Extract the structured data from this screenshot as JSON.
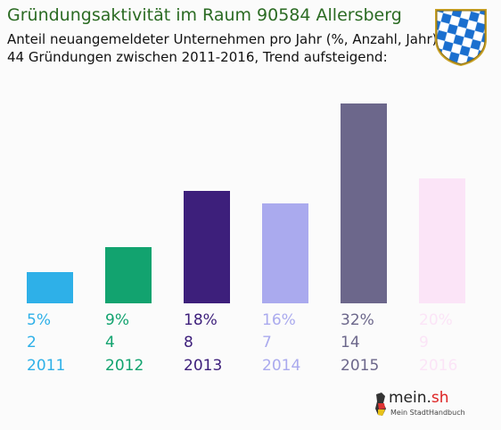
{
  "header": {
    "title": "Gründungsaktivität im Raum 90584 Allersberg",
    "subtitle_line1": "Anteil neuangemeldeter Unternehmen pro Jahr (%, Anzahl, Jahr)",
    "subtitle_line2": "44 Gründungen zwischen 2011-2016, Trend aufsteigend:"
  },
  "logo": {
    "name_main": "mein.",
    "name_suffix": "sh",
    "tagline": "Mein StadtHandbuch"
  },
  "chart_data": {
    "type": "bar",
    "categories": [
      "2011",
      "2012",
      "2013",
      "2014",
      "2015",
      "2016"
    ],
    "values": [
      5,
      9,
      18,
      16,
      32,
      20
    ],
    "value_labels": [
      "5%",
      "9%",
      "18%",
      "16%",
      "32%",
      "20%"
    ],
    "counts": [
      "2",
      "4",
      "8",
      "7",
      "14",
      "9"
    ],
    "colors": [
      "#2eb0e8",
      "#12a36f",
      "#3d1f7b",
      "#aaaaee",
      "#6c678b",
      "#fbe4f7"
    ],
    "ylim": [
      0,
      32
    ],
    "grid": false,
    "legend": "none"
  }
}
